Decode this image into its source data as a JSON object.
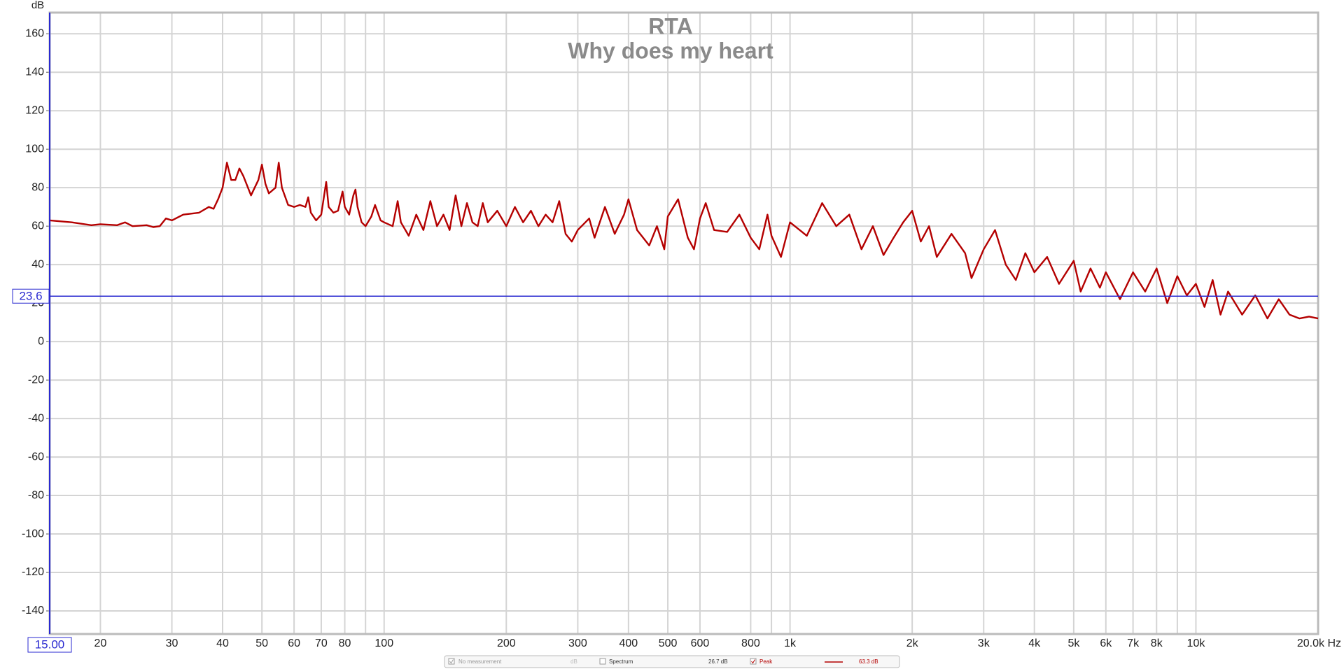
{
  "chart_data": {
    "type": "line",
    "title": "RTA",
    "subtitle": "Why does my heart",
    "y_label": "dB",
    "x_scale": "log",
    "grid": true,
    "xlim": [
      15,
      20000
    ],
    "ylim": [
      -152,
      171
    ],
    "xticks": [
      20,
      30,
      40,
      50,
      60,
      70,
      80,
      100,
      200,
      300,
      400,
      500,
      600,
      800,
      {
        "value": 1000,
        "label": "1k"
      },
      {
        "value": 2000,
        "label": "2k"
      },
      {
        "value": 3000,
        "label": "3k"
      },
      {
        "value": 4000,
        "label": "4k"
      },
      {
        "value": 5000,
        "label": "5k"
      },
      {
        "value": 6000,
        "label": "6k"
      },
      {
        "value": 7000,
        "label": "7k"
      },
      {
        "value": 8000,
        "label": "8k"
      },
      {
        "value": 10000,
        "label": "10k"
      },
      {
        "value": 20000,
        "label": "20.0k Hz"
      }
    ],
    "x_minor_grid": [
      90,
      900,
      9000
    ],
    "yticks": [
      -140,
      -120,
      -100,
      -80,
      -60,
      -40,
      -20,
      0,
      20,
      40,
      60,
      80,
      100,
      120,
      140,
      160
    ],
    "cursor": {
      "x": {
        "value": 15,
        "label": "15.00"
      },
      "y": 23.6
    },
    "x": [
      15,
      17,
      19,
      20,
      22,
      23,
      24,
      26,
      27,
      28,
      29,
      30,
      32,
      35,
      37,
      38,
      39,
      40,
      41,
      42,
      43,
      44,
      45,
      47,
      49,
      50,
      51,
      52,
      54,
      55,
      56,
      58,
      60,
      62,
      64,
      65,
      66,
      68,
      70,
      72,
      73,
      75,
      77,
      79,
      80,
      82,
      84,
      85,
      86,
      88,
      90,
      93,
      95,
      98,
      100,
      105,
      108,
      110,
      115,
      120,
      125,
      130,
      135,
      140,
      145,
      150,
      155,
      160,
      165,
      170,
      175,
      180,
      190,
      200,
      210,
      220,
      230,
      240,
      250,
      260,
      270,
      280,
      290,
      300,
      320,
      330,
      350,
      370,
      390,
      400,
      420,
      450,
      470,
      490,
      500,
      530,
      560,
      580,
      600,
      620,
      650,
      700,
      750,
      800,
      840,
      880,
      900,
      950,
      1000,
      1100,
      1200,
      1300,
      1400,
      1500,
      1600,
      1700,
      1800,
      1900,
      2000,
      2100,
      2200,
      2300,
      2500,
      2700,
      2800,
      3000,
      3200,
      3400,
      3600,
      3800,
      4000,
      4300,
      4600,
      5000,
      5200,
      5500,
      5800,
      6000,
      6500,
      7000,
      7500,
      8000,
      8500,
      9000,
      9500,
      10000,
      10500,
      11000,
      11500,
      12000,
      13000,
      14000,
      15000,
      16000,
      17000,
      18000,
      19000,
      20000
    ],
    "series": [
      {
        "name": "Peak",
        "color": "#b40000",
        "values": [
          63,
          62,
          60.5,
          61,
          60.5,
          62,
          60,
          60.5,
          59.5,
          60,
          64,
          63,
          66,
          67,
          70,
          69,
          74,
          80,
          93,
          84,
          84,
          90,
          86,
          76,
          84,
          92,
          82,
          77,
          80,
          93,
          80,
          71,
          70,
          71,
          70,
          75,
          67,
          63,
          66,
          83,
          70,
          67,
          68,
          78,
          70,
          66,
          76,
          79,
          70,
          62,
          60,
          65,
          71,
          63,
          62,
          60,
          73,
          62,
          55,
          66,
          58,
          73,
          60,
          66,
          58,
          76,
          60,
          72,
          62,
          60,
          72,
          62,
          68,
          60,
          70,
          62,
          68,
          60,
          66,
          62,
          73,
          56,
          52,
          58,
          64,
          54,
          70,
          56,
          66,
          74,
          58,
          50,
          60,
          48,
          65,
          74,
          54,
          48,
          64,
          72,
          58,
          57,
          66,
          54,
          48,
          66,
          55,
          44,
          62,
          55,
          72,
          60,
          66,
          48,
          60,
          45,
          54,
          62,
          68,
          52,
          60,
          44,
          56,
          46,
          33,
          48,
          58,
          40,
          32,
          46,
          36,
          44,
          30,
          42,
          26,
          38,
          28,
          36,
          22,
          36,
          26,
          38,
          20,
          34,
          24,
          30,
          18,
          32,
          14,
          26,
          14,
          24,
          12,
          22,
          14,
          12,
          13,
          12
        ]
      }
    ],
    "legend_bar": [
      {
        "label": "No measurement",
        "unit": "dB",
        "checked": true
      },
      {
        "label": "Spectrum",
        "reading": "26.7 dB",
        "checked": false
      },
      {
        "reading": "63.3 dB",
        "checked": true
      }
    ]
  }
}
